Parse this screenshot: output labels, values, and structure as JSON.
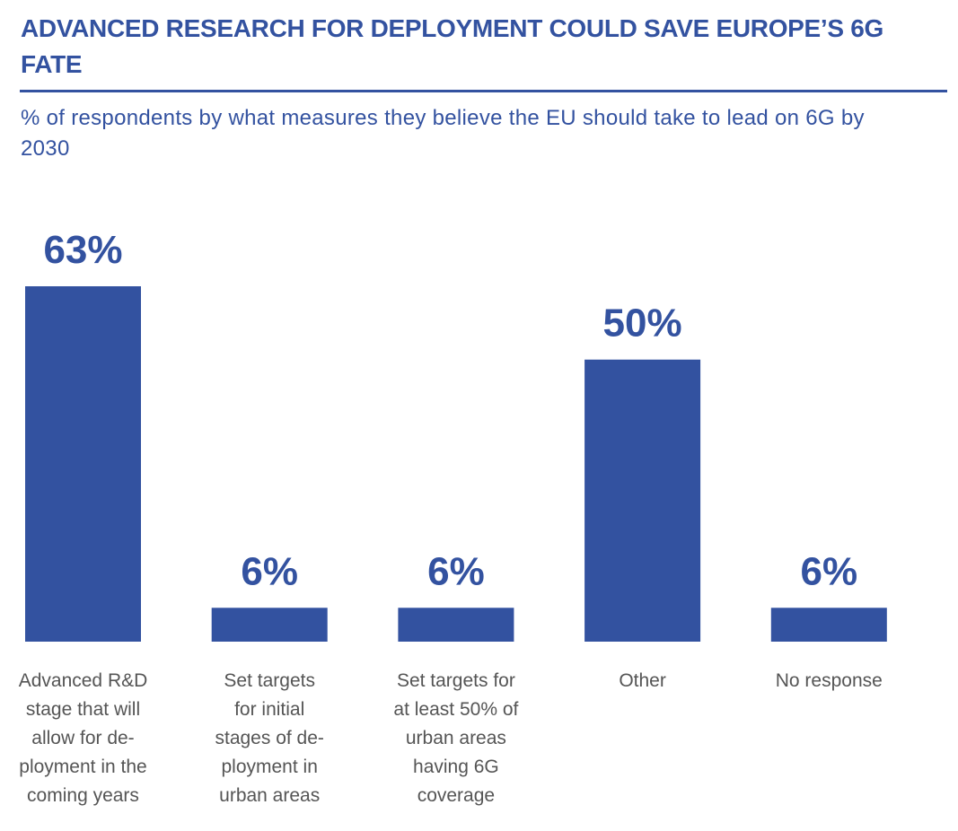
{
  "title": "ADVANCED RESEARCH FOR DEPLOYMENT COULD SAVE EUROPE’S 6G FATE",
  "subtitle": "% of respondents by what measures they believe the EU should take to lead on 6G by 2030",
  "chart_data": {
    "type": "bar",
    "categories": [
      [
        "Advanced R&D",
        "stage that will",
        "allow for de-",
        "ployment in the",
        "coming years"
      ],
      [
        "Set targets",
        "for initial",
        "stages of de-",
        "ployment in",
        "urban areas"
      ],
      [
        "Set targets for",
        "at least 50% of",
        "urban areas",
        "having 6G",
        "coverage"
      ],
      [
        "Other"
      ],
      [
        "No response"
      ]
    ],
    "values": [
      63,
      6,
      6,
      50,
      6
    ],
    "data_labels": [
      "63%",
      "6%",
      "6%",
      "50%",
      "6%"
    ],
    "unit": "%",
    "grid": false,
    "axes_visible": false,
    "bar_color": "#3352a0",
    "label_color": "#555555"
  }
}
